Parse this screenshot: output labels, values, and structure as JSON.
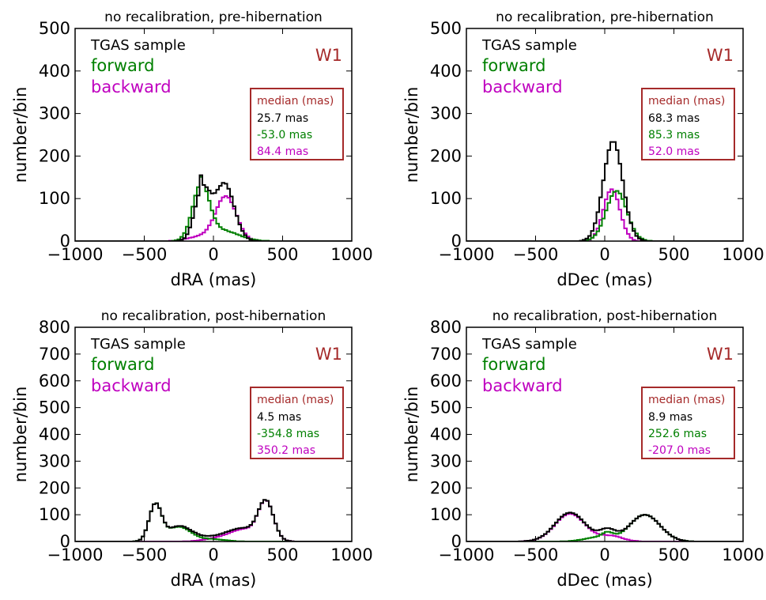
{
  "figure": {
    "band_label": "W1",
    "legend": {
      "all": "TGAS sample",
      "forward": "forward",
      "backward": "backward"
    },
    "box_title": "median (mas)",
    "colors": {
      "all": "#000000",
      "forward": "#008000",
      "backward": "#bf00bf",
      "band": "#a52a2a",
      "box_border": "#a52a2a"
    }
  },
  "chart_data": [
    {
      "type": "histogram",
      "title": "no recalibration, pre-hibernation",
      "xlabel": "dRA (mas)",
      "ylabel": "number/bin",
      "xlim": [
        -1000,
        1000
      ],
      "ylim": [
        0,
        500
      ],
      "xticks": [
        -1000,
        -500,
        0,
        500,
        1000
      ],
      "yticks": [
        0,
        100,
        200,
        300,
        400,
        500
      ],
      "xtick_labels": [
        "−1000",
        "−500",
        "0",
        "500",
        "1000"
      ],
      "ytick_labels": [
        "0",
        "100",
        "200",
        "300",
        "400",
        "500"
      ],
      "medians": [
        "25.7 mas",
        "-53.0 mas",
        "84.4 mas"
      ],
      "bin_width": 20,
      "series": [
        {
          "name": "TGAS sample",
          "key": "all",
          "components": [
            {
              "center": -80,
              "sigma": 55,
              "amp": 120
            },
            {
              "center": 80,
              "sigma": 70,
              "amp": 135
            }
          ],
          "spikes": [
            {
              "x": -90,
              "v": 30
            },
            {
              "x": 40,
              "v": 15
            },
            {
              "x": 100,
              "v": 15
            }
          ]
        },
        {
          "name": "forward",
          "key": "forward",
          "components": [
            {
              "center": -90,
              "sigma": 60,
              "amp": 125
            },
            {
              "center": 60,
              "sigma": 120,
              "amp": 25
            }
          ],
          "spikes": [
            {
              "x": -90,
              "v": 15
            }
          ]
        },
        {
          "name": "backward",
          "key": "backward",
          "components": [
            {
              "center": 90,
              "sigma": 75,
              "amp": 105
            },
            {
              "center": -100,
              "sigma": 90,
              "amp": 10
            }
          ],
          "spikes": []
        }
      ]
    },
    {
      "type": "histogram",
      "title": "no recalibration, pre-hibernation",
      "xlabel": "dDec (mas)",
      "ylabel": "number/bin",
      "xlim": [
        -1000,
        1000
      ],
      "ylim": [
        0,
        500
      ],
      "xticks": [
        -1000,
        -500,
        0,
        500,
        1000
      ],
      "yticks": [
        0,
        100,
        200,
        300,
        400,
        500
      ],
      "xtick_labels": [
        "−1000",
        "−500",
        "0",
        "500",
        "1000"
      ],
      "ytick_labels": [
        "0",
        "100",
        "200",
        "300",
        "400",
        "500"
      ],
      "medians": [
        "68.3 mas",
        "85.3 mas",
        "52.0 mas"
      ],
      "bin_width": 20,
      "series": [
        {
          "name": "TGAS sample",
          "key": "all",
          "components": [
            {
              "center": 60,
              "sigma": 70,
              "amp": 235
            }
          ],
          "spikes": [
            {
              "x": 500,
              "v": 20
            }
          ]
        },
        {
          "name": "forward",
          "key": "forward",
          "components": [
            {
              "center": 85,
              "sigma": 75,
              "amp": 118
            }
          ],
          "spikes": []
        },
        {
          "name": "backward",
          "key": "backward",
          "components": [
            {
              "center": 50,
              "sigma": 60,
              "amp": 122
            }
          ],
          "spikes": []
        }
      ]
    },
    {
      "type": "histogram",
      "title": "no recalibration, post-hibernation",
      "xlabel": "dRA (mas)",
      "ylabel": "number/bin",
      "xlim": [
        -1000,
        1000
      ],
      "ylim": [
        0,
        800
      ],
      "xticks": [
        -1000,
        -500,
        0,
        500,
        1000
      ],
      "yticks": [
        0,
        100,
        200,
        300,
        400,
        500,
        600,
        700,
        800
      ],
      "xtick_labels": [
        "−1000",
        "−500",
        "0",
        "500",
        "1000"
      ],
      "ytick_labels": [
        "0",
        "100",
        "200",
        "300",
        "400",
        "500",
        "600",
        "700",
        "800"
      ],
      "medians": [
        "4.5 mas",
        "-354.8 mas",
        "350.2 mas"
      ],
      "bin_width": 20,
      "series": [
        {
          "name": "TGAS sample",
          "key": "all",
          "components": [
            {
              "center": -420,
              "sigma": 45,
              "amp": 135
            },
            {
              "center": -250,
              "sigma": 90,
              "amp": 55
            },
            {
              "center": 380,
              "sigma": 55,
              "amp": 140
            },
            {
              "center": 220,
              "sigma": 110,
              "amp": 45
            },
            {
              "center": 0,
              "sigma": 140,
              "amp": 15
            }
          ],
          "spikes": []
        },
        {
          "name": "forward",
          "key": "forward",
          "components": [
            {
              "center": -420,
              "sigma": 45,
              "amp": 135
            },
            {
              "center": -250,
              "sigma": 90,
              "amp": 55
            },
            {
              "center": 0,
              "sigma": 90,
              "amp": 8
            }
          ],
          "spikes": []
        },
        {
          "name": "backward",
          "key": "backward",
          "components": [
            {
              "center": 380,
              "sigma": 55,
              "amp": 140
            },
            {
              "center": 220,
              "sigma": 110,
              "amp": 45
            },
            {
              "center": 0,
              "sigma": 90,
              "amp": 8
            }
          ],
          "spikes": []
        }
      ]
    },
    {
      "type": "histogram",
      "title": "no recalibration, post-hibernation",
      "xlabel": "dDec (mas)",
      "ylabel": "number/bin",
      "xlim": [
        -1000,
        1000
      ],
      "ylim": [
        0,
        800
      ],
      "xticks": [
        -1000,
        -500,
        0,
        500,
        1000
      ],
      "yticks": [
        0,
        100,
        200,
        300,
        400,
        500,
        600,
        700,
        800
      ],
      "xtick_labels": [
        "−1000",
        "−500",
        "0",
        "500",
        "1000"
      ],
      "ytick_labels": [
        "0",
        "100",
        "200",
        "300",
        "400",
        "500",
        "600",
        "700",
        "800"
      ],
      "medians": [
        "8.9 mas",
        "252.6 mas",
        "-207.0 mas"
      ],
      "bin_width": 20,
      "series": [
        {
          "name": "TGAS sample",
          "key": "all",
          "components": [
            {
              "center": -250,
              "sigma": 110,
              "amp": 108
            },
            {
              "center": 290,
              "sigma": 110,
              "amp": 100
            },
            {
              "center": 20,
              "sigma": 60,
              "amp": 40
            }
          ],
          "spikes": []
        },
        {
          "name": "forward",
          "key": "forward",
          "components": [
            {
              "center": 290,
              "sigma": 110,
              "amp": 100
            },
            {
              "center": -50,
              "sigma": 100,
              "amp": 15
            },
            {
              "center": 20,
              "sigma": 40,
              "amp": 20
            }
          ],
          "spikes": []
        },
        {
          "name": "backward",
          "key": "backward",
          "components": [
            {
              "center": -250,
              "sigma": 110,
              "amp": 104
            },
            {
              "center": 50,
              "sigma": 80,
              "amp": 20
            }
          ],
          "spikes": []
        }
      ]
    }
  ]
}
